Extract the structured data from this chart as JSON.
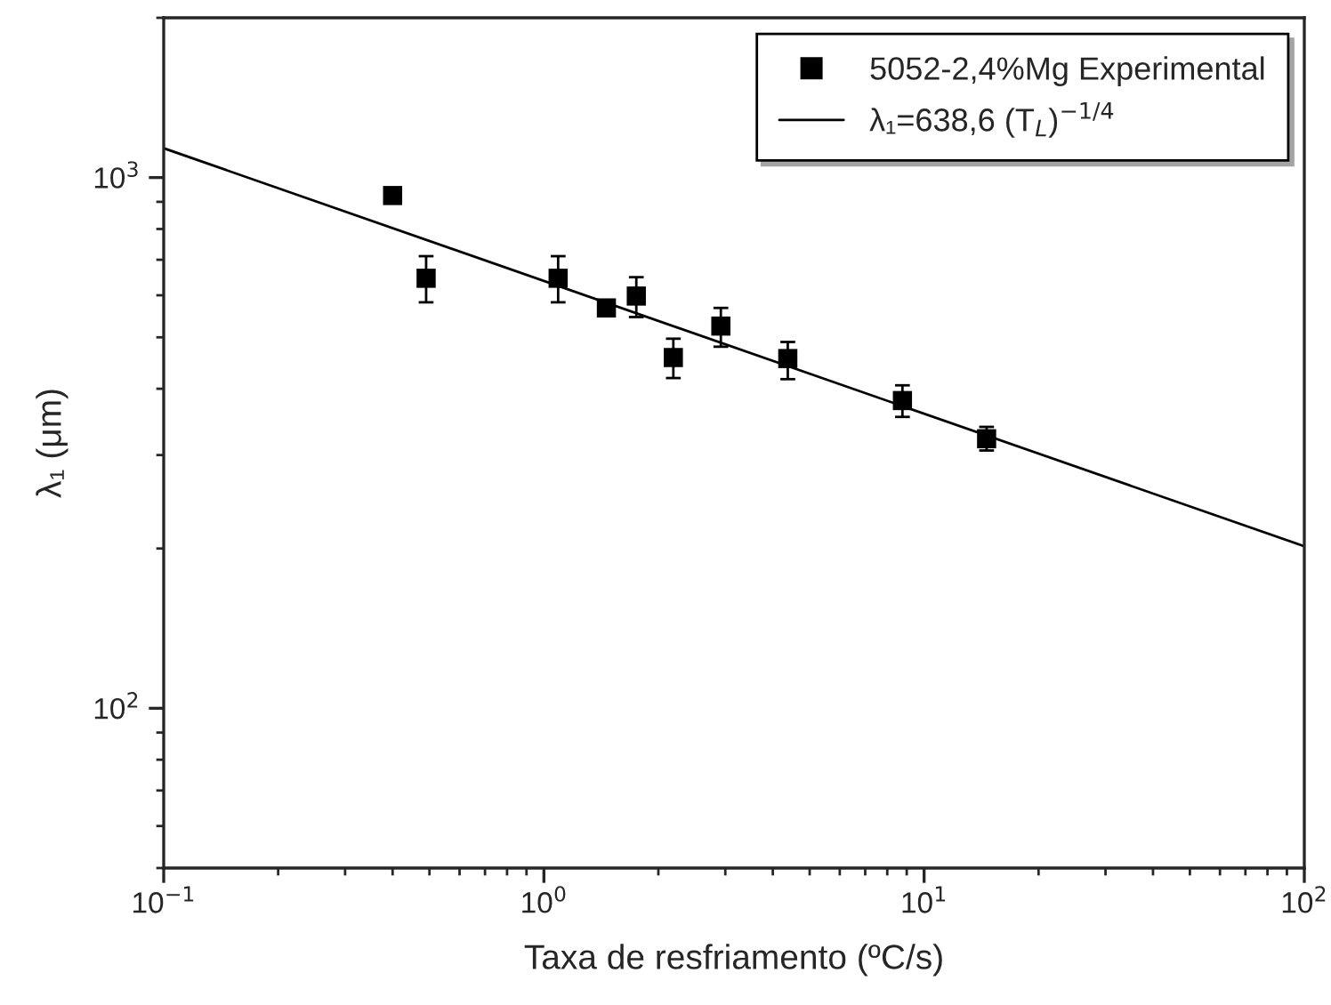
{
  "chart_data": {
    "type": "scatter",
    "xlabel": "Taxa de resfriamento (ºC/s)",
    "ylabel": "λ₁ (μm)",
    "log": "xy",
    "xlim": [
      0.1,
      100
    ],
    "ylim": [
      50,
      2000
    ],
    "xticks": [
      {
        "value": 0.1,
        "label": "10$^{−1}$"
      },
      {
        "value": 1,
        "label": "10$^{0}$"
      },
      {
        "value": 10,
        "label": "10$^{1}$"
      },
      {
        "value": 100,
        "label": "10$^{2}$"
      }
    ],
    "yticks": [
      {
        "value": 100,
        "label": "10$^{2}$"
      },
      {
        "value": 1000,
        "label": "10$^{3}$"
      }
    ],
    "grid": false,
    "legend": "top right",
    "marker": "square",
    "series": [
      {
        "name": "5052-2,4%Mg Experimental",
        "color": "#000000",
        "x": [
          0.4,
          0.49,
          1.09,
          1.46,
          1.75,
          2.19,
          2.92,
          4.38,
          8.77,
          14.6
        ],
        "values": [
          925,
          646,
          646,
          568,
          598,
          458,
          525,
          456,
          380,
          322
        ],
        "errors": [
          null,
          [
            582,
            711
          ],
          [
            582,
            711
          ],
          null,
          [
            546,
            649
          ],
          [
            419,
            497
          ],
          [
            480,
            568
          ],
          [
            417,
            490
          ],
          [
            354,
            406
          ],
          [
            306,
            339
          ]
        ]
      },
      {
        "name": "λ₁=638,6 (T$_{L}$)$^{−1/4}$",
        "type": "line",
        "color": "#000000",
        "x": [
          0.1,
          100
        ],
        "values": [
          1135.6,
          201.9
        ],
        "marker": "none",
        "line_style": "solid"
      }
    ]
  }
}
